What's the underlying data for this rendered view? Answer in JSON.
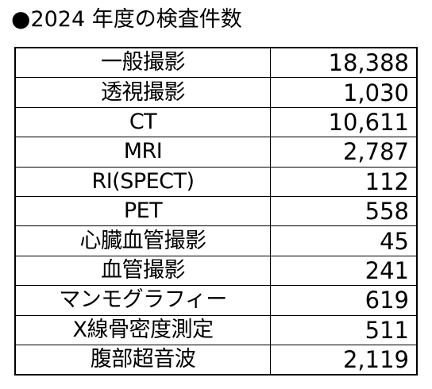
{
  "title": "2024 年度の検査件数",
  "title_bullet": "●",
  "rows": [
    {
      "label": "一般撮影",
      "value": "18,388"
    },
    {
      "label": "透視撮影",
      "value": "1,030"
    },
    {
      "label": "CT",
      "value": "10,611"
    },
    {
      "label": "MRI",
      "value": "2,787"
    },
    {
      "label": "RI(SPECT)",
      "value": "112"
    },
    {
      "label": "PET",
      "value": "558"
    },
    {
      "label": "心臓血管撮影",
      "value": "45"
    },
    {
      "label": "血管撮影",
      "value": "241"
    },
    {
      "label": "マンモグラフィー",
      "value": "619"
    },
    {
      "label": "X線骨密度測定",
      "value": "511"
    },
    {
      "label": "腹部超音波",
      "value": "2,119"
    }
  ]
}
